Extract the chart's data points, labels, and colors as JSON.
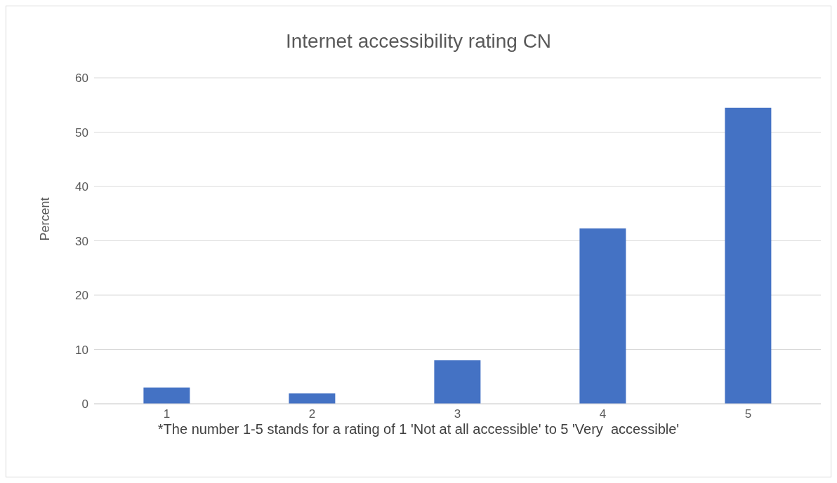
{
  "chart_data": {
    "type": "bar",
    "title": "Internet accessibility rating CN",
    "ylabel": "Percent",
    "categories": [
      "1",
      "2",
      "3",
      "4",
      "5"
    ],
    "values": [
      3.0,
      1.9,
      8.0,
      32.3,
      54.5
    ],
    "color": "#4472c4",
    "ylim": [
      0,
      60
    ],
    "yticks": [
      0,
      10,
      20,
      30,
      40,
      50,
      60
    ],
    "grid": "y",
    "annotations": [
      "*The number 1-5 stands for a rating of 1 'Not at all accessible' to 5 'Very  accessible'"
    ]
  }
}
